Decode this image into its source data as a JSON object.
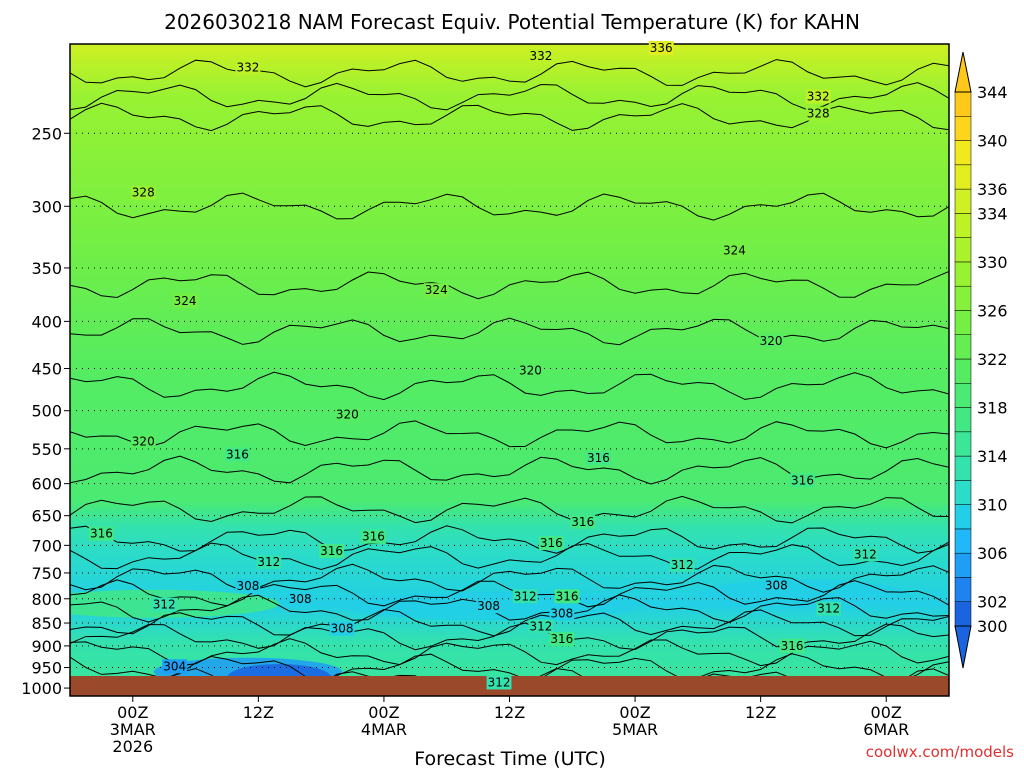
{
  "chart_data": {
    "type": "heatmap",
    "title": "2026030218 NAM Forecast Equiv. Potential Temperature (K) for KAHN",
    "xlabel": "Forecast Time (UTC)",
    "ylabel": "",
    "x_ticks": [
      {
        "hour": 6,
        "lines": [
          "00Z",
          "3MAR",
          "2026"
        ]
      },
      {
        "hour": 18,
        "lines": [
          "12Z"
        ]
      },
      {
        "hour": 30,
        "lines": [
          "00Z",
          "4MAR"
        ]
      },
      {
        "hour": 42,
        "lines": [
          "12Z"
        ]
      },
      {
        "hour": 54,
        "lines": [
          "00Z",
          "5MAR"
        ]
      },
      {
        "hour": 66,
        "lines": [
          "12Z"
        ]
      },
      {
        "hour": 78,
        "lines": [
          "00Z",
          "6MAR"
        ]
      }
    ],
    "xlim": [
      0,
      84
    ],
    "y_ticks": [
      250,
      300,
      350,
      400,
      450,
      500,
      550,
      600,
      650,
      700,
      750,
      800,
      850,
      900,
      950,
      1000
    ],
    "ylim": [
      1020,
      200
    ],
    "y_scale": "log",
    "grid": "dotted at pressure levels",
    "colorbar": {
      "levels": [
        300,
        302,
        304,
        306,
        308,
        310,
        312,
        314,
        316,
        318,
        320,
        322,
        324,
        326,
        328,
        330,
        332,
        334,
        336,
        338,
        340,
        342,
        344
      ],
      "labels": [
        300,
        302,
        306,
        310,
        314,
        318,
        322,
        326,
        330,
        334,
        336,
        340,
        344
      ],
      "colors": [
        "#1a64e0",
        "#1e82f0",
        "#1f9ef5",
        "#20b8f8",
        "#22cfe6",
        "#2bdcc8",
        "#34e2ad",
        "#3be697",
        "#42e884",
        "#4bea72",
        "#55ec62",
        "#64ee52",
        "#74ef44",
        "#86f03b",
        "#98f232",
        "#abf22c",
        "#bdf226",
        "#cff023",
        "#e2ee20",
        "#f2e81e",
        "#fbd61c",
        "#fec91b"
      ]
    },
    "contour_labels": [
      {
        "text": "336",
        "hour": 56.5,
        "p": 202
      },
      {
        "text": "332",
        "hour": 17.0,
        "p": 212
      },
      {
        "text": "332",
        "hour": 45.0,
        "p": 206
      },
      {
        "text": "332",
        "hour": 71.5,
        "p": 228
      },
      {
        "text": "328",
        "hour": 71.5,
        "p": 238
      },
      {
        "text": "328",
        "hour": 7.0,
        "p": 290
      },
      {
        "text": "324",
        "hour": 63.5,
        "p": 335
      },
      {
        "text": "324",
        "hour": 11.0,
        "p": 380
      },
      {
        "text": "324",
        "hour": 35.0,
        "p": 370
      },
      {
        "text": "320",
        "hour": 67.0,
        "p": 420
      },
      {
        "text": "320",
        "hour": 44.0,
        "p": 452
      },
      {
        "text": "320",
        "hour": 26.5,
        "p": 505
      },
      {
        "text": "320",
        "hour": 7.0,
        "p": 540
      },
      {
        "text": "316",
        "hour": 16.0,
        "p": 558
      },
      {
        "text": "316",
        "hour": 50.5,
        "p": 563
      },
      {
        "text": "316",
        "hour": 70.0,
        "p": 595
      },
      {
        "text": "316",
        "hour": 49.0,
        "p": 660
      },
      {
        "text": "316",
        "hour": 3.0,
        "p": 680
      },
      {
        "text": "316",
        "hour": 29.0,
        "p": 685
      },
      {
        "text": "316",
        "hour": 46.0,
        "p": 696
      },
      {
        "text": "316",
        "hour": 25.0,
        "p": 710
      },
      {
        "text": "312",
        "hour": 19.0,
        "p": 730
      },
      {
        "text": "312",
        "hour": 58.5,
        "p": 735
      },
      {
        "text": "312",
        "hour": 76.0,
        "p": 716
      },
      {
        "text": "308",
        "hour": 17.0,
        "p": 775
      },
      {
        "text": "308",
        "hour": 22.0,
        "p": 800
      },
      {
        "text": "312",
        "hour": 43.5,
        "p": 795
      },
      {
        "text": "316",
        "hour": 47.5,
        "p": 795
      },
      {
        "text": "308",
        "hour": 40.0,
        "p": 815
      },
      {
        "text": "308",
        "hour": 67.5,
        "p": 774
      },
      {
        "text": "312",
        "hour": 72.5,
        "p": 820
      },
      {
        "text": "312",
        "hour": 9.0,
        "p": 812
      },
      {
        "text": "308",
        "hour": 47.0,
        "p": 830
      },
      {
        "text": "312",
        "hour": 45.0,
        "p": 857
      },
      {
        "text": "308",
        "hour": 26.0,
        "p": 862
      },
      {
        "text": "316",
        "hour": 47.0,
        "p": 885
      },
      {
        "text": "316",
        "hour": 69.0,
        "p": 900
      },
      {
        "text": "304",
        "hour": 10.0,
        "p": 947
      },
      {
        "text": "312",
        "hour": 41.0,
        "p": 986
      }
    ]
  },
  "attribution": "coolwx.com/models"
}
